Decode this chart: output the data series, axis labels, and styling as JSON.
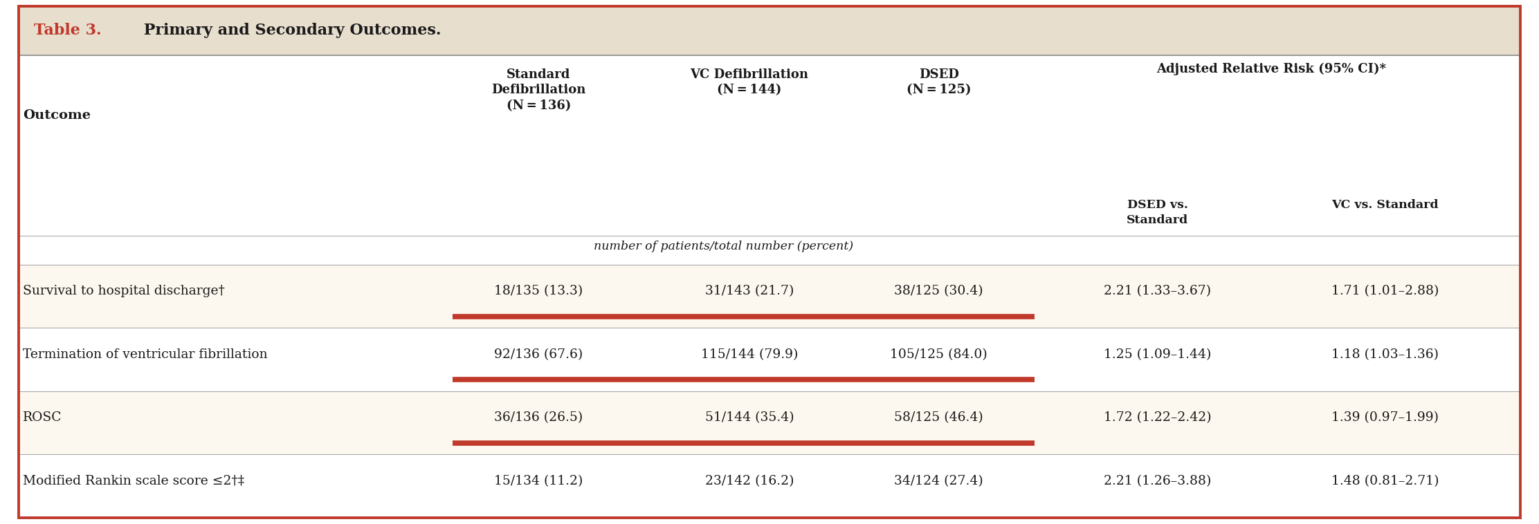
{
  "title_prefix": "Table 3.",
  "title_text": " Primary and Secondary Outcomes.",
  "title_prefix_color": "#c0392b",
  "title_text_color": "#1a1a1a",
  "bg_main": "#ffffff",
  "bg_title": "#e8dece",
  "bg_header": "#ffffff",
  "bg_row_odd": "#fdf8ef",
  "bg_row_even": "#ffffff",
  "outer_border_color": "#c0392b",
  "sep_line_color": "#aaaaaa",
  "red_bar_color": "#c0392b",
  "italic_subheader": "number of patients/total number (percent)",
  "rows": [
    {
      "outcome": "Survival to hospital discharge†",
      "std": "18/135 (13.3)",
      "vc": "31/143 (21.7)",
      "dsed": "38/125 (30.4)",
      "dsed_vs_std": "2.21 (1.33–3.67)",
      "vc_vs_std": "1.71 (1.01–2.88)",
      "red_bar": true
    },
    {
      "outcome": "Termination of ventricular fibrillation",
      "std": "92/136 (67.6)",
      "vc": "115/144 (79.9)",
      "dsed": "105/125 (84.0)",
      "dsed_vs_std": "1.25 (1.09–1.44)",
      "vc_vs_std": "1.18 (1.03–1.36)",
      "red_bar": true
    },
    {
      "outcome": "ROSC",
      "std": "36/136 (26.5)",
      "vc": "51/144 (35.4)",
      "dsed": "58/125 (46.4)",
      "dsed_vs_std": "1.72 (1.22–2.42)",
      "vc_vs_std": "1.39 (0.97–1.99)",
      "red_bar": true
    },
    {
      "outcome": "Modified Rankin scale score ≤2†‡",
      "std": "15/134 (11.2)",
      "vc": "23/142 (16.2)",
      "dsed": "34/124 (27.4)",
      "dsed_vs_std": "2.21 (1.26–3.88)",
      "vc_vs_std": "1.48 (0.81–2.71)",
      "red_bar": false
    }
  ],
  "figsize": [
    22.24,
    7.58
  ],
  "dpi": 100
}
